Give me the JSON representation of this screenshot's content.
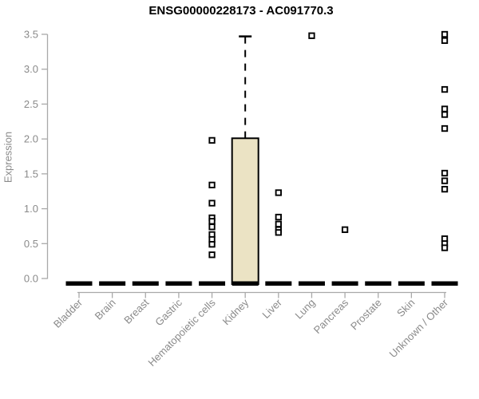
{
  "chart_data": {
    "type": "boxplot",
    "title": "ENSG00000228173 - AC091770.3",
    "ylabel": "Expression",
    "xlabel": "",
    "ylim": [
      0,
      3.5
    ],
    "yticks": [
      "0.0",
      "0.5",
      "1.0",
      "1.5",
      "2.0",
      "2.5",
      "3.0",
      "3.5"
    ],
    "grid": false,
    "legend": "none",
    "categories": [
      "Bladder",
      "Brain",
      "Breast",
      "Gastric",
      "Hematopoietic cells",
      "Kidney",
      "Liver",
      "Lung",
      "Pancreas",
      "Prostate",
      "Skin",
      "Unknown / Other"
    ],
    "boxes": [
      {
        "category": "Bladder",
        "q1": 0,
        "median": 0,
        "q3": 0,
        "whisker_low": 0,
        "whisker_high": 0,
        "outliers": []
      },
      {
        "category": "Brain",
        "q1": 0,
        "median": 0,
        "q3": 0,
        "whisker_low": 0,
        "whisker_high": 0,
        "outliers": []
      },
      {
        "category": "Breast",
        "q1": 0,
        "median": 0,
        "q3": 0,
        "whisker_low": 0,
        "whisker_high": 0,
        "outliers": []
      },
      {
        "category": "Gastric",
        "q1": 0,
        "median": 0,
        "q3": 0,
        "whisker_low": 0,
        "whisker_high": 0,
        "outliers": []
      },
      {
        "category": "Hematopoietic cells",
        "q1": 0,
        "median": 0,
        "q3": 0,
        "whisker_low": 0,
        "whisker_high": 0,
        "outliers": [
          1.98,
          1.34,
          1.08,
          0.87,
          0.82,
          0.74,
          0.63,
          0.56,
          0.49,
          0.34
        ]
      },
      {
        "category": "Kidney",
        "q1": 0,
        "median": 0.02,
        "q3": 2.01,
        "whisker_low": 0,
        "whisker_high": 3.47,
        "outliers": []
      },
      {
        "category": "Liver",
        "q1": 0,
        "median": 0,
        "q3": 0,
        "whisker_low": 0,
        "whisker_high": 0,
        "outliers": [
          1.23,
          0.88,
          0.78,
          0.7,
          0.66
        ]
      },
      {
        "category": "Lung",
        "q1": 0,
        "median": 0,
        "q3": 0,
        "whisker_low": 0,
        "whisker_high": 0,
        "outliers": [
          3.48
        ]
      },
      {
        "category": "Pancreas",
        "q1": 0,
        "median": 0,
        "q3": 0,
        "whisker_low": 0,
        "whisker_high": 0,
        "outliers": [
          0.7
        ]
      },
      {
        "category": "Prostate",
        "q1": 0,
        "median": 0,
        "q3": 0,
        "whisker_low": 0,
        "whisker_high": 0,
        "outliers": []
      },
      {
        "category": "Skin",
        "q1": 0,
        "median": 0,
        "q3": 0,
        "whisker_low": 0,
        "whisker_high": 0,
        "outliers": []
      },
      {
        "category": "Unknown / Other",
        "q1": 0,
        "median": 0,
        "q3": 0,
        "whisker_low": 0,
        "whisker_high": 0,
        "outliers": [
          3.5,
          3.41,
          2.71,
          2.43,
          2.35,
          2.15,
          1.51,
          1.4,
          1.28,
          0.57,
          0.5,
          0.44
        ]
      }
    ],
    "colors": {
      "box_fill": "#EBE3C4",
      "box_stroke": "#000000",
      "flat_box": "#000000",
      "outlier_stroke": "#000000",
      "outlier_fill": "#FFFFFF",
      "axis_line": "#A9A9A9",
      "tick_label": "#8A8A8A",
      "title_color": "#000000",
      "background": "#FFFFFF"
    }
  }
}
